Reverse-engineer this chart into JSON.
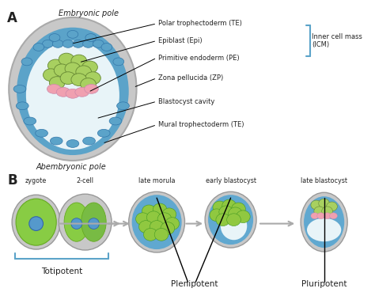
{
  "bg_color": "#ffffff",
  "panel_A_label": "A",
  "panel_B_label": "B",
  "embryonic_pole": "Embryonic pole",
  "abembryonic_pole": "Abembryonic pole",
  "labels_A": [
    "Polar trophectoderm (TE)",
    "Epiblast (Epi)",
    "Primitive endoderm (PE)",
    "Zona pellucida (ZP)",
    "Blastocyst cavity",
    "Mural trophectoderm (TE)"
  ],
  "icm_label": "Inner cell mass\n(ICM)",
  "stages_B": [
    "zygote",
    "2-cell",
    "late morula",
    "early blastocyst",
    "late blastocyst"
  ],
  "label_totipotent": "Totipotent",
  "label_plenipotent": "Plenipotent",
  "label_pluripotent": "Pluripotent",
  "color_gray_outer": "#c8c8c8",
  "color_blue_layer": "#5ba3c9",
  "color_green_epiblast": "#a8d060",
  "color_pink_pe": "#f0a0b0",
  "color_cavity": "#e8f4f8",
  "color_cell_outline": "#333333",
  "color_bracket": "#5ba3c9",
  "color_arrow": "#cccccc",
  "color_text": "#222222",
  "color_green_morula": "#90c840",
  "color_blue_morula": "#60a8d0",
  "color_green_dark": "#449922",
  "color_blue_nucleus": "#5599cc",
  "color_blue_nucleus_edge": "#3366aa"
}
